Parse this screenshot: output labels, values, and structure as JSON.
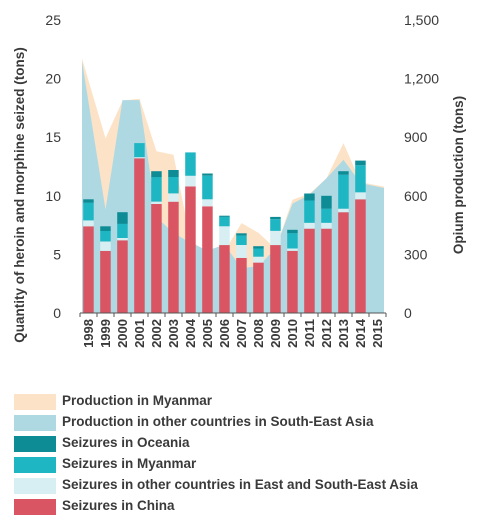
{
  "chart_data": {
    "type": "bar",
    "categories": [
      "1998",
      "1999",
      "2000",
      "2001",
      "2002",
      "2003",
      "2004",
      "2005",
      "2006",
      "2007",
      "2008",
      "2009",
      "2010",
      "2011",
      "2012",
      "2013",
      "2014",
      "2015"
    ],
    "ylabel_left": "Quantity of heroin and morphine seized (tons)",
    "ylabel_right": "Opium production (tons)",
    "left_ticks": [
      "0",
      "5",
      "10",
      "15",
      "20",
      "25"
    ],
    "right_ticks": [
      "0",
      "300",
      "600",
      "900",
      "1,200",
      "1,500"
    ],
    "ylim_left": [
      0,
      25
    ],
    "ylim_right": [
      0,
      1500
    ],
    "area_series": [
      {
        "name": "Production in Myanmar",
        "color": "#fce3c7",
        "values": [
          1303,
          895,
          1087,
          1097,
          828,
          810,
          370,
          312,
          315,
          460,
          410,
          330,
          580,
          610,
          690,
          870,
          670,
          647
        ]
      },
      {
        "name": "Production in other countries in South-East Asia",
        "color": "#aed9e2",
        "values": [
          1290,
          530,
          1090,
          1090,
          490,
          410,
          360,
          320,
          350,
          230,
          240,
          330,
          560,
          605,
          690,
          785,
          665,
          640
        ]
      }
    ],
    "bar_series": [
      {
        "name": "Seizures in Oceania",
        "color": "#0e8c96",
        "values": [
          0.3,
          0.4,
          1.0,
          0.0,
          0.5,
          0.6,
          0.0,
          0.2,
          0.1,
          0.2,
          0.2,
          0.2,
          0.3,
          0.6,
          1.1,
          0.3,
          0.4,
          null
        ]
      },
      {
        "name": "Seizures in Myanmar",
        "color": "#1fb6c4",
        "values": [
          1.5,
          0.9,
          1.2,
          1.2,
          2.1,
          1.4,
          2.0,
          2.0,
          0.8,
          0.8,
          0.7,
          1.0,
          1.3,
          1.9,
          1.2,
          2.9,
          2.3,
          null
        ]
      },
      {
        "name": "Seizures in other countries in East and South-East Asia",
        "color": "#d7eef2",
        "values": [
          0.5,
          0.8,
          0.2,
          0.1,
          0.2,
          0.7,
          0.9,
          0.6,
          1.6,
          1.1,
          0.5,
          1.2,
          0.2,
          0.5,
          0.5,
          0.3,
          0.6,
          null
        ]
      },
      {
        "name": "Seizures in China",
        "color": "#d95563",
        "values": [
          7.4,
          5.3,
          6.2,
          13.2,
          9.3,
          9.5,
          10.8,
          9.1,
          5.8,
          4.7,
          4.3,
          5.8,
          5.3,
          7.2,
          7.2,
          8.6,
          9.7,
          null
        ]
      }
    ],
    "legend_order": [
      "Production in Myanmar",
      "Production in other countries in South-East Asia",
      "Seizures in Oceania",
      "Seizures in Myanmar",
      "Seizures in other countries in East and South-East Asia",
      "Seizures in China"
    ],
    "grid": false,
    "legend_position": "bottom"
  }
}
